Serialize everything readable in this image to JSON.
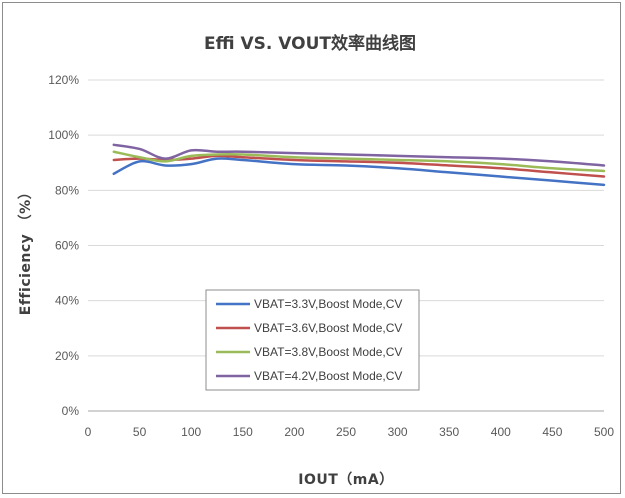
{
  "chart_data": {
    "type": "line",
    "title": "Effi VS. VOUT效率曲线图",
    "xlabel": "IOUT（mA）",
    "ylabel": "Efficiency （%）",
    "xlim": [
      0,
      500
    ],
    "ylim": [
      0,
      120
    ],
    "x_ticks": [
      "0",
      "50",
      "100",
      "150",
      "200",
      "250",
      "300",
      "350",
      "400",
      "450",
      "500"
    ],
    "y_ticks": [
      "0%",
      "20%",
      "40%",
      "60%",
      "80%",
      "100%",
      "120%"
    ],
    "grid": "horizontal",
    "legend_position": "lower-center",
    "x": [
      25,
      50,
      75,
      100,
      125,
      150,
      200,
      250,
      300,
      350,
      400,
      450,
      500
    ],
    "series": [
      {
        "name": "VBAT=3.3V,Boost Mode,CV",
        "color": "#4472c4",
        "values": [
          86,
          90.5,
          89,
          89.5,
          91.5,
          91,
          89.5,
          89,
          88,
          86.5,
          85,
          83.5,
          82
        ]
      },
      {
        "name": "VBAT=3.6V,Boost Mode,CV",
        "color": "#c0504d",
        "values": [
          91,
          91.5,
          91,
          91.5,
          92.5,
          92,
          91,
          90.5,
          90,
          89,
          88,
          86.5,
          85
        ]
      },
      {
        "name": "VBAT=3.8V,Boost Mode,CV",
        "color": "#9bbb59",
        "values": [
          94,
          92,
          90.5,
          92.5,
          93,
          93,
          92,
          91.5,
          91,
          90.5,
          89.5,
          88,
          87
        ]
      },
      {
        "name": "VBAT=4.2V,Boost Mode,CV",
        "color": "#8064a2",
        "values": [
          96.5,
          95,
          91.5,
          94.5,
          94,
          94,
          93.5,
          93,
          92.5,
          92,
          91.5,
          90.5,
          89
        ]
      }
    ]
  }
}
